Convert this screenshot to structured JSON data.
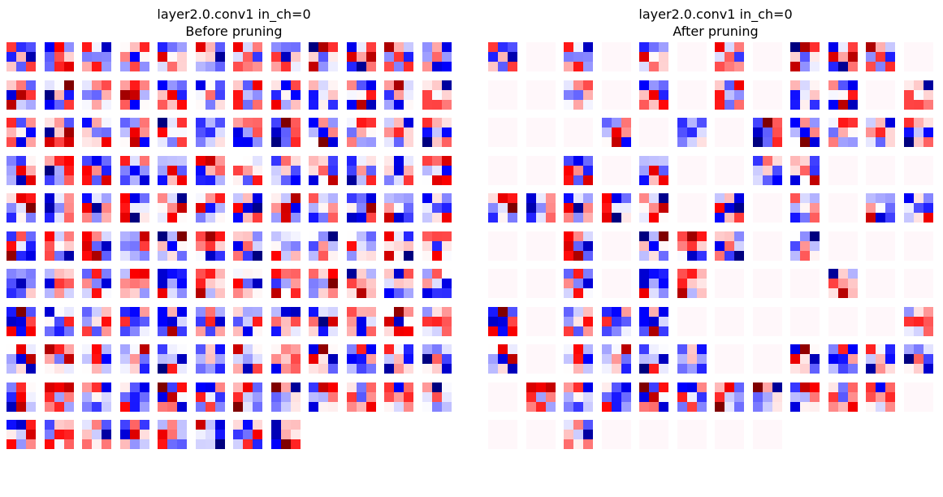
{
  "panels": [
    {
      "title": "layer2.0.conv1 in_ch=0",
      "subtitle": "Before pruning"
    },
    {
      "title": "layer2.0.conv1 in_ch=0",
      "subtitle": "After pruning"
    }
  ],
  "chart_data": [
    {
      "type": "heatmap",
      "title": "layer2.0.conv1 in_ch=0",
      "subtitle": "Before pruning",
      "description_units": "3x3 kernel weights, one tile per output channel, diverging colormap (seismic)",
      "layout": {
        "columns": 12,
        "rows": 11,
        "kernels": 128
      },
      "colormap": "seismic",
      "grid": false
    },
    {
      "type": "heatmap",
      "title": "layer2.0.conv1 in_ch=0",
      "subtitle": "After pruning",
      "layout": {
        "columns": 12,
        "rows": 11,
        "kernels": 128
      },
      "colormap": "seismic",
      "grid": false,
      "kept_kernels": [
        0,
        2,
        4,
        6,
        8,
        9,
        10,
        14,
        16,
        18,
        20,
        21,
        23,
        27,
        29,
        31,
        32,
        33,
        34,
        35,
        38,
        40,
        43,
        44,
        48,
        49,
        50,
        51,
        52,
        54,
        56,
        58,
        59,
        62,
        64,
        65,
        66,
        68,
        74,
        76,
        77,
        81,
        84,
        86,
        87,
        88,
        95,
        96,
        98,
        99,
        100,
        101,
        104,
        105,
        106,
        107,
        109,
        110,
        111,
        112,
        113,
        114,
        115,
        116,
        117,
        118,
        122
      ]
    }
  ],
  "colors": {
    "neg_strong": "#00007f",
    "neg": "#0000ff",
    "zero": "#ffffff",
    "pos": "#ff0000",
    "pos_strong": "#7f0000",
    "pruned_tint": "#fff7fa"
  }
}
